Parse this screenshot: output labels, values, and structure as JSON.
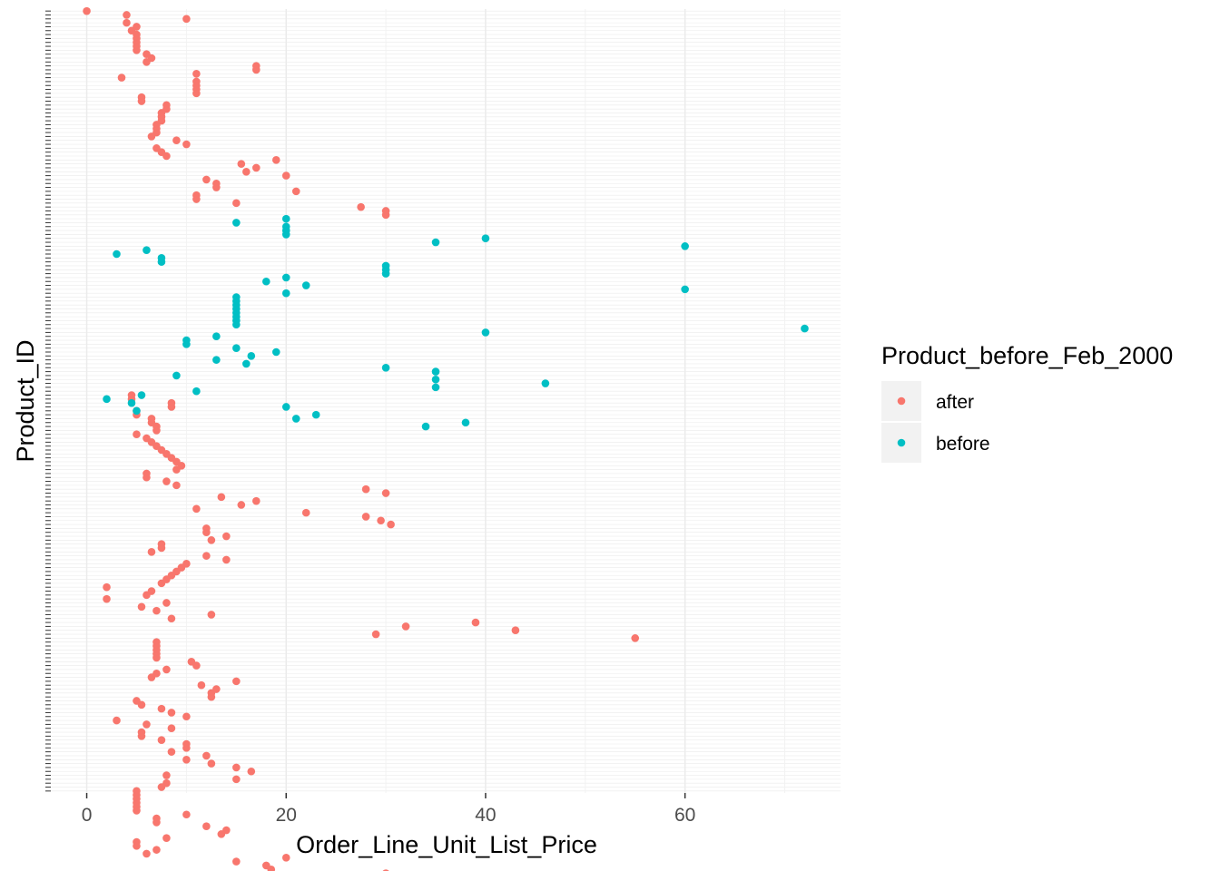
{
  "chart_data": {
    "type": "scatter",
    "xlabel": "Order_Line_Unit_List_Price",
    "ylabel": "Product_ID",
    "xlim": [
      -3.6,
      75.6
    ],
    "x_ticks": [
      0,
      20,
      40,
      60
    ],
    "x_tick_labels": [
      "0",
      "20",
      "40",
      "60"
    ],
    "y_tick_labels_shown": false,
    "y_categories_count": 200,
    "grid": true,
    "legend": {
      "title": "Product_before_Feb_2000",
      "position": "right",
      "entries": [
        {
          "label": "after",
          "color": "#f8766d"
        },
        {
          "label": "before",
          "color": "#00bfc4"
        }
      ]
    },
    "series": [
      {
        "name": "after",
        "color": "#f8766d",
        "points": [
          [
            0,
            1
          ],
          [
            4,
            2
          ],
          [
            10,
            3
          ],
          [
            4,
            4
          ],
          [
            5,
            5
          ],
          [
            4.5,
            6
          ],
          [
            5,
            7
          ],
          [
            5,
            8
          ],
          [
            5,
            9
          ],
          [
            5,
            10
          ],
          [
            5,
            11
          ],
          [
            6,
            12
          ],
          [
            6.5,
            13
          ],
          [
            6,
            14
          ],
          [
            17,
            15
          ],
          [
            17,
            16
          ],
          [
            11,
            17
          ],
          [
            3.5,
            18
          ],
          [
            11,
            19
          ],
          [
            11,
            20
          ],
          [
            11,
            21
          ],
          [
            11,
            22
          ],
          [
            5.5,
            23
          ],
          [
            5.5,
            24
          ],
          [
            8,
            25
          ],
          [
            8,
            26
          ],
          [
            7.5,
            27
          ],
          [
            7.5,
            28
          ],
          [
            7.5,
            29
          ],
          [
            7,
            30
          ],
          [
            7,
            31
          ],
          [
            7,
            32
          ],
          [
            6.5,
            33
          ],
          [
            9,
            34
          ],
          [
            10,
            35
          ],
          [
            7,
            36
          ],
          [
            7.5,
            37
          ],
          [
            8,
            38
          ],
          [
            19,
            39
          ],
          [
            15.5,
            40
          ],
          [
            17,
            41
          ],
          [
            16,
            42
          ],
          [
            20,
            43
          ],
          [
            12,
            44
          ],
          [
            13,
            45
          ],
          [
            13,
            46
          ],
          [
            21,
            47
          ],
          [
            11,
            48
          ],
          [
            11,
            49
          ],
          [
            15,
            50
          ],
          [
            27.5,
            51
          ],
          [
            30,
            52
          ],
          [
            30,
            53
          ],
          [
            4.5,
            99
          ],
          [
            4.5,
            100
          ],
          [
            8.5,
            101
          ],
          [
            8.5,
            102
          ],
          [
            5,
            103
          ],
          [
            5,
            104
          ],
          [
            6.5,
            105
          ],
          [
            6.5,
            106
          ],
          [
            7,
            107
          ],
          [
            7,
            108
          ],
          [
            5,
            109
          ],
          [
            6,
            110
          ],
          [
            6.5,
            111
          ],
          [
            7,
            112
          ],
          [
            7.5,
            113
          ],
          [
            8,
            114
          ],
          [
            8.5,
            115
          ],
          [
            9,
            116
          ],
          [
            9.5,
            117
          ],
          [
            9,
            118
          ],
          [
            6,
            119
          ],
          [
            6,
            120
          ],
          [
            8,
            121
          ],
          [
            9,
            122
          ],
          [
            28,
            123
          ],
          [
            30,
            124
          ],
          [
            13.5,
            125
          ],
          [
            17,
            126
          ],
          [
            15.5,
            127
          ],
          [
            11,
            128
          ],
          [
            22,
            129
          ],
          [
            28,
            130
          ],
          [
            29.5,
            131
          ],
          [
            30.5,
            132
          ],
          [
            12,
            133
          ],
          [
            12,
            134
          ],
          [
            14,
            135
          ],
          [
            12.5,
            136
          ],
          [
            7.5,
            137
          ],
          [
            7.5,
            138
          ],
          [
            6.5,
            139
          ],
          [
            12,
            140
          ],
          [
            14,
            141
          ],
          [
            10,
            142
          ],
          [
            9.5,
            143
          ],
          [
            9,
            144
          ],
          [
            8.5,
            145
          ],
          [
            8,
            146
          ],
          [
            7.5,
            147
          ],
          [
            2,
            148
          ],
          [
            6.5,
            149
          ],
          [
            6,
            150
          ],
          [
            2,
            151
          ],
          [
            8,
            152
          ],
          [
            5.5,
            153
          ],
          [
            7,
            154
          ],
          [
            12.5,
            155
          ],
          [
            8.5,
            156
          ],
          [
            39,
            157
          ],
          [
            32,
            158
          ],
          [
            43,
            159
          ],
          [
            29,
            160
          ],
          [
            55,
            161
          ],
          [
            7,
            162
          ],
          [
            7,
            163
          ],
          [
            7,
            164
          ],
          [
            7,
            165
          ],
          [
            7,
            166
          ],
          [
            10.5,
            167
          ],
          [
            11,
            168
          ],
          [
            8,
            169
          ],
          [
            7,
            170
          ],
          [
            6.5,
            171
          ],
          [
            15,
            172
          ],
          [
            11.5,
            173
          ],
          [
            13,
            174
          ],
          [
            12.5,
            175
          ],
          [
            12.5,
            176
          ],
          [
            5,
            177
          ],
          [
            5.5,
            178
          ],
          [
            7.5,
            179
          ],
          [
            8.5,
            180
          ],
          [
            10,
            181
          ],
          [
            3,
            182
          ],
          [
            6,
            183
          ],
          [
            8.5,
            184
          ],
          [
            5.5,
            185
          ],
          [
            5.5,
            186
          ],
          [
            7.5,
            187
          ],
          [
            10,
            188
          ],
          [
            10,
            189
          ],
          [
            8.5,
            190
          ],
          [
            12,
            191
          ],
          [
            10,
            192
          ],
          [
            12.5,
            193
          ],
          [
            15,
            194
          ],
          [
            16.5,
            195
          ],
          [
            8,
            196
          ],
          [
            15,
            197
          ],
          [
            8,
            198
          ],
          [
            7.5,
            199
          ],
          [
            5,
            200
          ],
          [
            5,
            201
          ],
          [
            5,
            202
          ],
          [
            5,
            203
          ],
          [
            5,
            204
          ],
          [
            5,
            205
          ],
          [
            10,
            206
          ],
          [
            7,
            207
          ],
          [
            7,
            208
          ],
          [
            12,
            209
          ],
          [
            14,
            210
          ],
          [
            13.5,
            211
          ],
          [
            8,
            212
          ],
          [
            5,
            213
          ],
          [
            5,
            214
          ],
          [
            7,
            215
          ],
          [
            6,
            216
          ],
          [
            20,
            217
          ],
          [
            15,
            218
          ],
          [
            18,
            219
          ],
          [
            18.5,
            220
          ],
          [
            30,
            221
          ],
          [
            28,
            222
          ],
          [
            15,
            223
          ]
        ]
      },
      {
        "name": "before",
        "color": "#00bfc4",
        "points": [
          [
            20,
            54
          ],
          [
            15,
            55
          ],
          [
            20,
            56
          ],
          [
            20,
            57
          ],
          [
            20,
            58
          ],
          [
            40,
            59
          ],
          [
            35,
            60
          ],
          [
            60,
            61
          ],
          [
            6,
            62
          ],
          [
            3,
            63
          ],
          [
            7.5,
            64
          ],
          [
            7.5,
            65
          ],
          [
            30,
            66
          ],
          [
            30,
            67
          ],
          [
            30,
            68
          ],
          [
            20,
            69
          ],
          [
            18,
            70
          ],
          [
            22,
            71
          ],
          [
            60,
            72
          ],
          [
            20,
            73
          ],
          [
            15,
            74
          ],
          [
            15,
            75
          ],
          [
            15,
            76
          ],
          [
            15,
            77
          ],
          [
            15,
            78
          ],
          [
            15,
            79
          ],
          [
            15,
            80
          ],
          [
            15,
            81
          ],
          [
            72,
            82
          ],
          [
            40,
            83
          ],
          [
            13,
            84
          ],
          [
            10,
            85
          ],
          [
            10,
            86
          ],
          [
            15,
            87
          ],
          [
            19,
            88
          ],
          [
            16.5,
            89
          ],
          [
            13,
            90
          ],
          [
            16,
            91
          ],
          [
            30,
            92
          ],
          [
            35,
            93
          ],
          [
            9,
            94
          ],
          [
            35,
            95
          ],
          [
            46,
            96
          ],
          [
            35,
            97
          ],
          [
            11,
            98
          ],
          [
            5.5,
            99
          ],
          [
            2,
            100
          ],
          [
            4.5,
            101
          ],
          [
            20,
            102
          ],
          [
            5,
            103
          ],
          [
            23,
            104
          ],
          [
            21,
            105
          ],
          [
            38,
            106
          ],
          [
            34,
            107
          ]
        ]
      }
    ]
  }
}
